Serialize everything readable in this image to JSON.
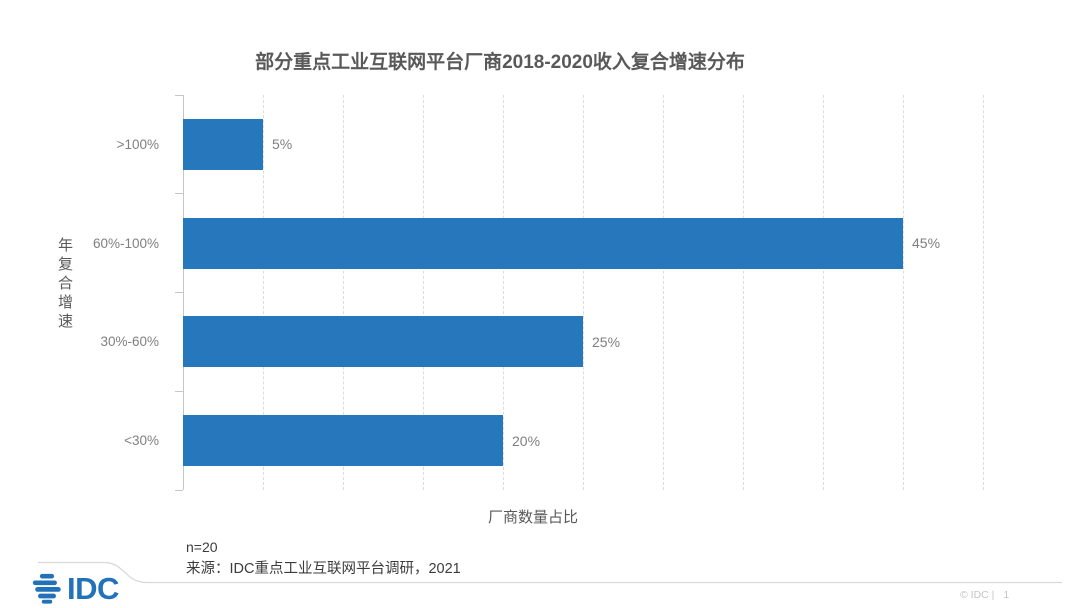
{
  "chart_data": {
    "type": "bar",
    "orientation": "horizontal",
    "title": "部分重点工业互联网平台厂商2018-2020收入复合增速分布",
    "categories": [
      ">100%",
      "60%-100%",
      "30%-60%",
      "<30%"
    ],
    "values": [
      5,
      45,
      25,
      20
    ],
    "value_labels": [
      "5%",
      "45%",
      "25%",
      "20%"
    ],
    "xlabel": "厂商数量占比",
    "ylabel": "年复合增速",
    "xlim": [
      0,
      50
    ],
    "gridline_step": 5,
    "grid": "vertical-dashed",
    "legend": "none",
    "bar_color": "#2777BC",
    "label_color": "#7f7f7f"
  },
  "footer": {
    "sample_note": "n=20",
    "source": "来源：IDC重点工业互联网平台调研，2021",
    "logo": "IDC",
    "copyright": "© IDC |",
    "page_number": "1"
  }
}
